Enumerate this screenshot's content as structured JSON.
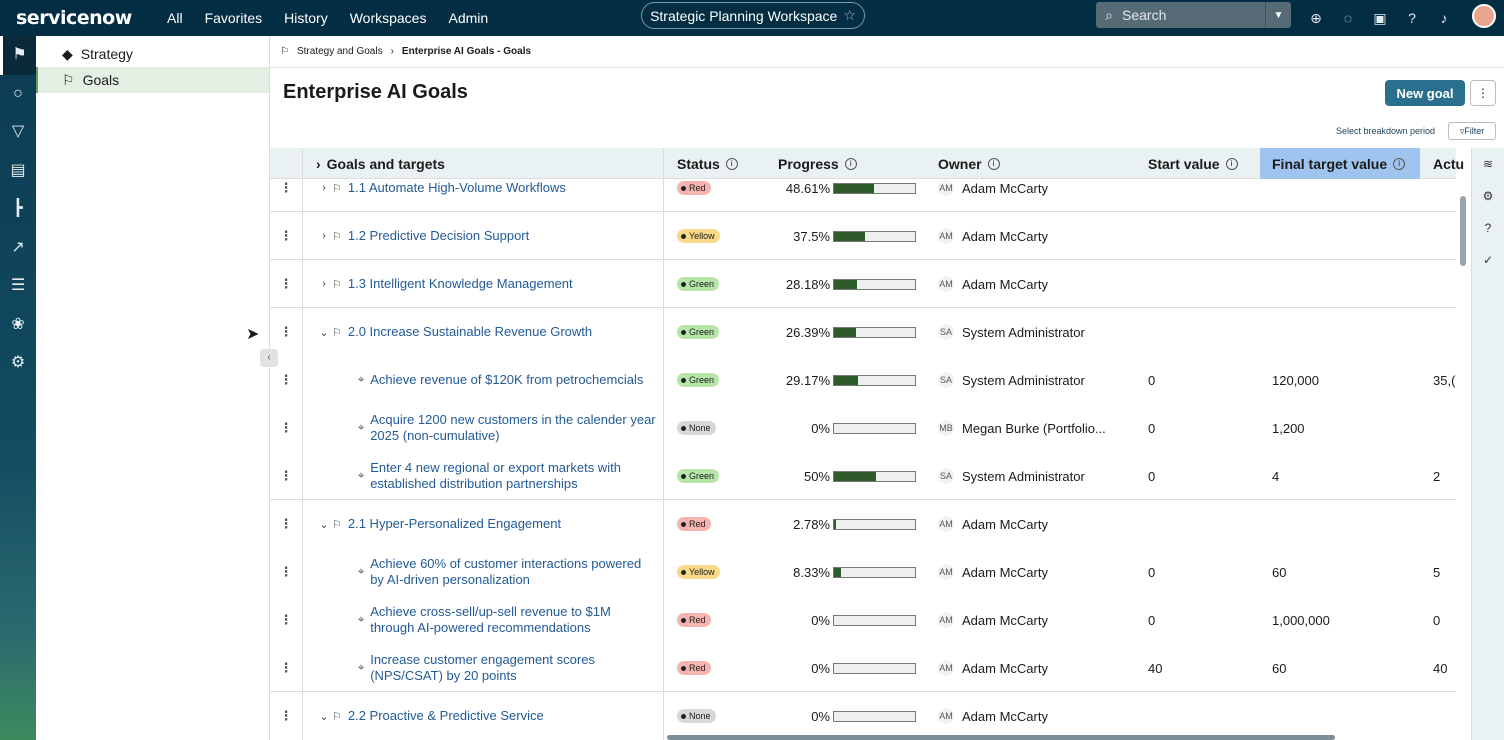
{
  "topnav": {
    "logo": "servicenow",
    "menu": [
      "All",
      "Favorites",
      "History",
      "Workspaces",
      "Admin"
    ],
    "workspace": "Strategic Planning Workspace",
    "search_placeholder": "Search"
  },
  "sidebar": {
    "items": [
      {
        "label": "Strategy",
        "icon": "diamond-icon"
      },
      {
        "label": "Goals",
        "icon": "flag-icon"
      }
    ]
  },
  "breadcrumb": {
    "parent": "Strategy and Goals",
    "current": "Enterprise AI Goals - Goals"
  },
  "page": {
    "title": "Enterprise AI Goals",
    "new_goal": "New goal",
    "breakdown": "Select breakdown period",
    "filter": "Filter"
  },
  "columns": {
    "goals": "Goals and targets",
    "status": "Status",
    "progress": "Progress",
    "owner": "Owner",
    "start": "Start value",
    "final": "Final target value",
    "actual": "Actu"
  },
  "rows": [
    {
      "name": "1.1 Automate High-Volume Workflows",
      "status": "Red",
      "progress": "48.61%",
      "fill": 48.61,
      "ini": "AM",
      "owner": "Adam McCarty",
      "start": "",
      "final": "",
      "actual": ""
    },
    {
      "name": "1.2 Predictive Decision Support",
      "status": "Yellow",
      "progress": "37.5%",
      "fill": 37.5,
      "ini": "AM",
      "owner": "Adam McCarty",
      "start": "",
      "final": "",
      "actual": ""
    },
    {
      "name": "1.3 Intelligent Knowledge Management",
      "status": "Green",
      "progress": "28.18%",
      "fill": 28.18,
      "ini": "AM",
      "owner": "Adam McCarty",
      "start": "",
      "final": "",
      "actual": ""
    },
    {
      "name": "2.0 Increase Sustainable Revenue Growth",
      "status": "Green",
      "progress": "26.39%",
      "fill": 26.39,
      "ini": "SA",
      "owner": "System Administrator",
      "start": "",
      "final": "",
      "actual": ""
    },
    {
      "name": "Achieve revenue of $120K from petrochemcials",
      "status": "Green",
      "progress": "29.17%",
      "fill": 29.17,
      "ini": "SA",
      "owner": "System Administrator",
      "start": "0",
      "final": "120,000",
      "actual": "35,("
    },
    {
      "name": "Acquire 1200 new customers in the calender year 2025 (non-cumulative)",
      "status": "None",
      "progress": "0%",
      "fill": 0,
      "ini": "MB",
      "owner": "Megan Burke (Portfolio...",
      "start": "0",
      "final": "1,200",
      "actual": ""
    },
    {
      "name": "Enter 4 new regional or export markets with established distribution partnerships",
      "status": "Green",
      "progress": "50%",
      "fill": 50,
      "ini": "SA",
      "owner": "System Administrator",
      "start": "0",
      "final": "4",
      "actual": "2"
    },
    {
      "name": "2.1 Hyper-Personalized Engagement",
      "status": "Red",
      "progress": "2.78%",
      "fill": 2.78,
      "ini": "AM",
      "owner": "Adam McCarty",
      "start": "",
      "final": "",
      "actual": ""
    },
    {
      "name": "Achieve 60% of customer interactions powered by AI-driven personalization",
      "status": "Yellow",
      "progress": "8.33%",
      "fill": 8.33,
      "ini": "AM",
      "owner": "Adam McCarty",
      "start": "0",
      "final": "60",
      "actual": "5"
    },
    {
      "name": "Achieve cross-sell/up-sell revenue to $1M through AI-powered recommendations",
      "status": "Red",
      "progress": "0%",
      "fill": 0,
      "ini": "AM",
      "owner": "Adam McCarty",
      "start": "0",
      "final": "1,000,000",
      "actual": "0"
    },
    {
      "name": "Increase customer engagement scores (NPS/CSAT) by 20 points",
      "status": "Red",
      "progress": "0%",
      "fill": 0,
      "ini": "AM",
      "owner": "Adam McCarty",
      "start": "40",
      "final": "60",
      "actual": "40"
    },
    {
      "name": "2.2 Proactive & Predictive Service",
      "status": "None",
      "progress": "0%",
      "fill": 0,
      "ini": "AM",
      "owner": "Adam McCarty",
      "start": "",
      "final": "",
      "actual": ""
    }
  ],
  "colors": {
    "accent": "#28708e",
    "nav": "#032d42",
    "link": "#235b96",
    "progress": "#2f5b2c"
  }
}
